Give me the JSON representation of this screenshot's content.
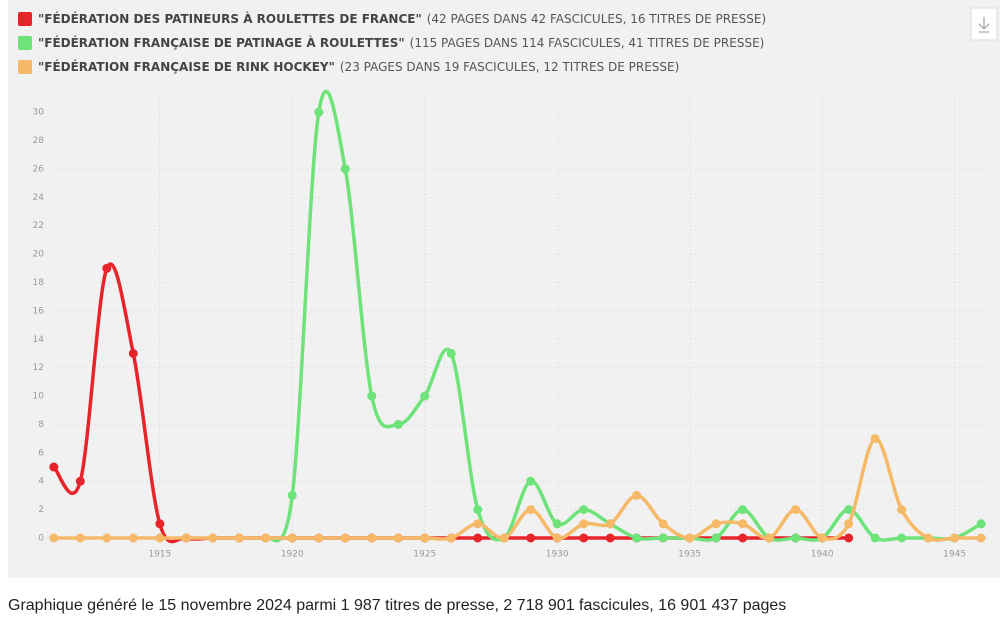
{
  "chart_data": {
    "type": "line",
    "x": [
      1911,
      1912,
      1913,
      1914,
      1915,
      1916,
      1917,
      1918,
      1919,
      1920,
      1921,
      1922,
      1923,
      1924,
      1925,
      1926,
      1927,
      1928,
      1929,
      1930,
      1931,
      1932,
      1933,
      1934,
      1935,
      1936,
      1937,
      1938,
      1939,
      1940,
      1941,
      1942,
      1943,
      1944,
      1945,
      1946
    ],
    "series": [
      {
        "name": "\"FÉDÉRATION DES PATINEURS À ROULETTES DE FRANCE\"",
        "legend_detail": "(42 PAGES DANS 42 FASCICULES, 16 TITRES DE PRESSE)",
        "color": "#e8242b",
        "values": [
          5,
          4,
          19,
          13,
          1,
          0,
          0,
          0,
          0,
          0,
          0,
          0,
          0,
          0,
          0,
          0,
          0,
          0,
          0,
          0,
          0,
          0,
          0,
          0,
          0,
          0,
          0,
          0,
          0,
          0,
          0,
          null,
          null,
          null,
          null,
          null
        ]
      },
      {
        "name": "\"FÉDÉRATION FRANÇAISE DE PATINAGE À ROULETTES\"",
        "legend_detail": "(115 PAGES DANS 114 FASCICULES, 41 TITRES DE PRESSE)",
        "color": "#6de37a",
        "values": [
          null,
          null,
          null,
          null,
          null,
          null,
          null,
          null,
          0,
          3,
          30,
          26,
          10,
          8,
          10,
          13,
          2,
          0,
          4,
          1,
          2,
          1,
          0,
          0,
          0,
          0,
          2,
          0,
          0,
          0,
          2,
          0,
          0,
          0,
          0,
          1
        ]
      },
      {
        "name": "\"FÉDÉRATION FRANÇAISE DE RINK HOCKEY\"",
        "legend_detail": "(23 PAGES DANS 19 FASCICULES, 12 TITRES DE PRESSE)",
        "color": "#f5b968",
        "values": [
          0,
          0,
          0,
          0,
          0,
          0,
          0,
          0,
          0,
          0,
          0,
          0,
          0,
          0,
          0,
          0,
          1,
          0,
          2,
          0,
          1,
          1,
          3,
          1,
          0,
          1,
          1,
          0,
          2,
          0,
          1,
          7,
          2,
          0,
          0,
          0
        ]
      }
    ],
    "xlim": [
      1910.1,
      1946.6
    ],
    "xticks": [
      1915,
      1920,
      1925,
      1930,
      1935,
      1940,
      1945
    ],
    "ylim": [
      0,
      31
    ],
    "yticks": [
      0,
      2,
      4,
      6,
      8,
      10,
      12,
      14,
      16,
      18,
      20,
      22,
      24,
      26,
      28,
      30
    ],
    "grid": true
  },
  "footer": "Graphique généré le 15 novembre 2024 parmi 1 987 titres de presse, 2 718 901 fascicules, 16 901 437 pages"
}
